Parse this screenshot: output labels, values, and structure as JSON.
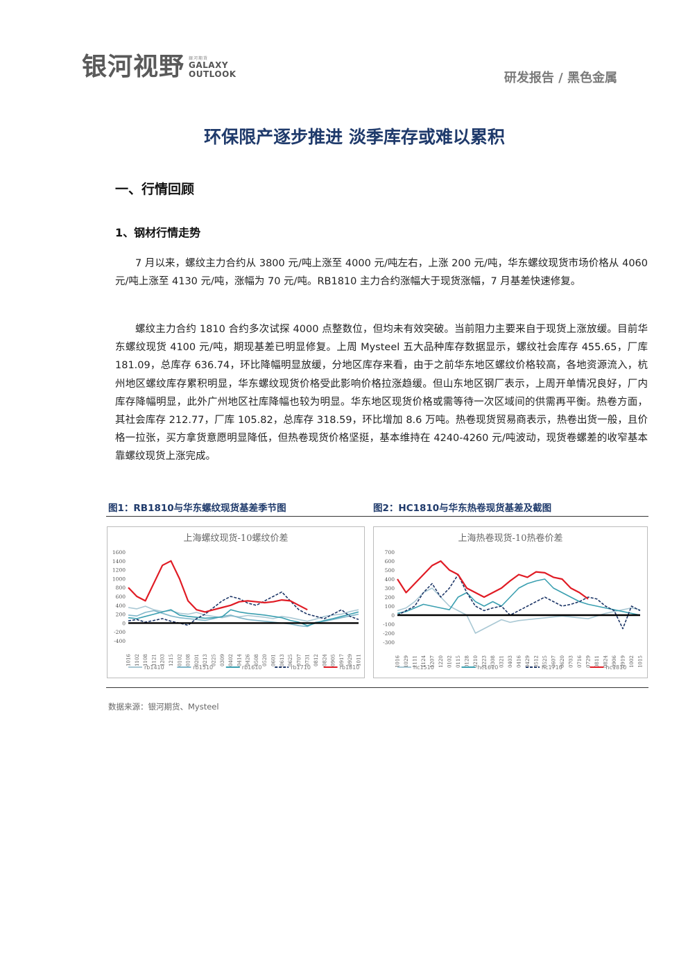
{
  "header": {
    "logo_cn": "银河视野",
    "logo_small": "銀河期貨",
    "logo_en_1": "GALAXY",
    "logo_en_2": "OUTLOOK",
    "right": "研发报告 / 黑色金属"
  },
  "title": "环保限产逐步推进 淡季库存或难以累积",
  "section1": "一、行情回顾",
  "subsection1": "1、钢材行情走势",
  "paragraphs": [
    "7 月以来，螺纹主力合约从 3800 元/吨上涨至 4000 元/吨左右，上涨 200 元/吨，华东螺纹现货市场价格从 4060 元/吨上涨至 4130 元/吨，涨幅为 70 元/吨。RB1810 主力合约涨幅大于现货涨幅，7 月基差快速修复。",
    "螺纹主力合约 1810 合约多次试探 4000 点整数位，但均未有效突破。当前阻力主要来自于现货上涨放缓。目前华东螺纹现货 4100 元/吨，期现基差已明显修复。上周 Mysteel 五大品种库存数据显示，螺纹社会库存 455.65，厂库 181.09，总库存 636.74，环比降幅明显放缓，分地区库存来看，由于之前华东地区螺纹价格较高，各地资源流入，杭州地区螺纹库存累积明显，华东螺纹现货价格受此影响价格拉涨趋缓。但山东地区钢厂表示，上周开单情况良好，厂内库存降幅明显，此外广州地区社库降幅也较为明显。华东地区现货价格或需等待一次区域间的供需再平衡。热卷方面，其社会库存 212.77，厂库 105.82，总库存 318.59，环比增加 8.6 万吨。热卷现货贸易商表示，热卷出货一般，且价格一拉张，买方拿货意愿明显降低，但热卷现货价格坚挺，基本维持在 4240-4260 元/吨波动，现货卷螺差的收窄基本靠螺纹现货上涨完成。"
  ],
  "figures": {
    "fig1_caption": "图1：RB1810与华东螺纹现货基差季节图",
    "fig2_caption": "图2：HC1810与华东热卷现货基差及截图",
    "source": "数据来源：银河期货、Mysteel"
  },
  "chart_data": [
    {
      "type": "line",
      "title": "上海螺纹现货-10螺纹价差",
      "x": [
        "1016",
        "1102",
        "1108",
        "1121",
        "1203",
        "1215",
        "0102",
        "0108",
        "0201",
        "0213",
        "0225",
        "0309",
        "0402",
        "0414",
        "0426",
        "0508",
        "0520",
        "0601",
        "0613",
        "0625",
        "0707",
        "0731",
        "0812",
        "0824",
        "0905",
        "0917",
        "0929",
        "1011"
      ],
      "ylim": [
        -400,
        1600
      ],
      "yticks": [
        1600,
        1400,
        1200,
        1000,
        800,
        600,
        400,
        200,
        0,
        -200,
        -400
      ],
      "legend_position": "bottom",
      "series": [
        {
          "name": "rb1410",
          "color": "#a9c8d4",
          "style": "solid",
          "values": [
            350,
            320,
            380,
            300,
            260,
            280,
            220,
            200,
            240,
            180,
            150,
            120,
            160,
            140,
            170,
            150,
            130,
            100,
            150,
            120,
            80,
            40,
            90,
            150,
            180,
            200,
            260,
            300
          ]
        },
        {
          "name": "rb1510",
          "color": "#7fb6c9",
          "style": "solid",
          "values": [
            180,
            160,
            240,
            280,
            220,
            160,
            120,
            100,
            80,
            60,
            100,
            150,
            180,
            120,
            80,
            60,
            40,
            20,
            0,
            -20,
            -60,
            -80,
            20,
            40,
            80,
            120,
            160,
            200
          ]
        },
        {
          "name": "rb1610",
          "color": "#3a9fb0",
          "style": "solid",
          "values": [
            120,
            100,
            150,
            200,
            250,
            300,
            180,
            150,
            130,
            110,
            120,
            140,
            300,
            250,
            220,
            200,
            180,
            150,
            120,
            60,
            20,
            -60,
            0,
            60,
            100,
            150,
            200,
            250
          ]
        },
        {
          "name": "rb1710",
          "color": "#1c3566",
          "style": "dashed",
          "values": [
            50,
            80,
            20,
            60,
            100,
            40,
            0,
            -50,
            100,
            200,
            350,
            500,
            600,
            550,
            450,
            400,
            500,
            600,
            700,
            500,
            300,
            200,
            150,
            100,
            200,
            300,
            150,
            80
          ]
        },
        {
          "name": "rb1810",
          "color": "#e01b24",
          "style": "solid",
          "values": [
            800,
            600,
            500,
            900,
            1300,
            1400,
            1000,
            500,
            300,
            250,
            300,
            350,
            400,
            480,
            500,
            480,
            460,
            480,
            520,
            500,
            400,
            300,
            null,
            null,
            null,
            null,
            null,
            null
          ]
        }
      ]
    },
    {
      "type": "line",
      "title": "上海热卷现货-10热卷价差",
      "x": [
        "1016",
        "1029",
        "1111",
        "1124",
        "1207",
        "1220",
        "0102",
        "0115",
        "0128",
        "0210",
        "0223",
        "0308",
        "0321",
        "0403",
        "0416",
        "0429",
        "0512",
        "0525",
        "0607",
        "0620",
        "0703",
        "0716",
        "0729",
        "0811",
        "0824",
        "0906",
        "0919",
        "1002",
        "1015"
      ],
      "ylim": [
        -300,
        700
      ],
      "yticks": [
        700,
        600,
        500,
        400,
        300,
        200,
        100,
        0,
        -100,
        -200,
        -300
      ],
      "legend_position": "bottom",
      "series": [
        {
          "name": "hc1510",
          "color": "#a9c8d4",
          "style": "solid",
          "values": [
            50,
            80,
            150,
            250,
            300,
            200,
            100,
            50,
            0,
            -200,
            -150,
            -100,
            -50,
            -80,
            -60,
            -50,
            -40,
            -30,
            -20,
            -10,
            -20,
            -30,
            -40,
            -10,
            20,
            40,
            60,
            80,
            60
          ]
        },
        {
          "name": "hc1610",
          "color": "#3a9fb0",
          "style": "solid",
          "values": [
            20,
            40,
            80,
            120,
            100,
            80,
            60,
            200,
            250,
            150,
            100,
            150,
            100,
            200,
            300,
            350,
            380,
            400,
            300,
            250,
            200,
            150,
            120,
            100,
            80,
            60,
            40,
            20,
            0
          ]
        },
        {
          "name": "hc1710",
          "color": "#1c3566",
          "style": "dashed",
          "values": [
            0,
            50,
            100,
            250,
            350,
            200,
            300,
            450,
            250,
            100,
            50,
            80,
            100,
            0,
            50,
            100,
            150,
            200,
            150,
            100,
            120,
            150,
            200,
            180,
            100,
            50,
            -150,
            100,
            50
          ]
        },
        {
          "name": "hc1810",
          "color": "#e01b24",
          "style": "solid",
          "values": [
            400,
            250,
            350,
            450,
            550,
            600,
            500,
            450,
            300,
            250,
            200,
            250,
            300,
            380,
            450,
            420,
            480,
            470,
            420,
            400,
            300,
            250,
            180,
            null,
            null,
            null,
            null,
            null,
            null
          ]
        }
      ]
    }
  ]
}
